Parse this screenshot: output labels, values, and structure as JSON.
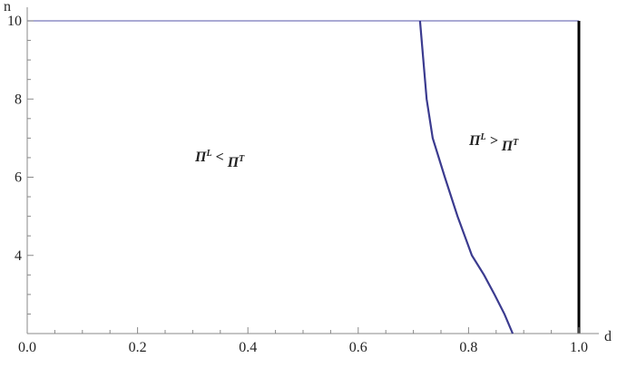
{
  "chart_data": {
    "type": "line",
    "xlabel": "d",
    "ylabel": "n",
    "x_unused": null,
    "series": [
      {
        "name": null,
        "color": "#3b3b8f",
        "x": [
          0.712,
          0.718,
          0.724,
          0.735,
          0.757,
          0.78,
          0.806,
          0.828,
          0.847,
          0.865,
          0.88
        ],
        "values": [
          10,
          9,
          8,
          7,
          6,
          5,
          4,
          3.5,
          3,
          2.5,
          2
        ]
      }
    ],
    "xlim": [
      0,
      1
    ],
    "ylim": [
      2,
      10
    ],
    "xticks": [
      {
        "value": 0,
        "label": "0.0"
      },
      0.2,
      0.4,
      0.6,
      0.8,
      {
        "value": 1,
        "label": "1.0"
      }
    ],
    "yticks": [
      4,
      6,
      8,
      10
    ],
    "annotations": [
      [
        "Π",
        "L",
        " < ",
        "Π",
        "T"
      ],
      [
        "Π",
        "L",
        " > ",
        "Π",
        "T"
      ]
    ]
  }
}
